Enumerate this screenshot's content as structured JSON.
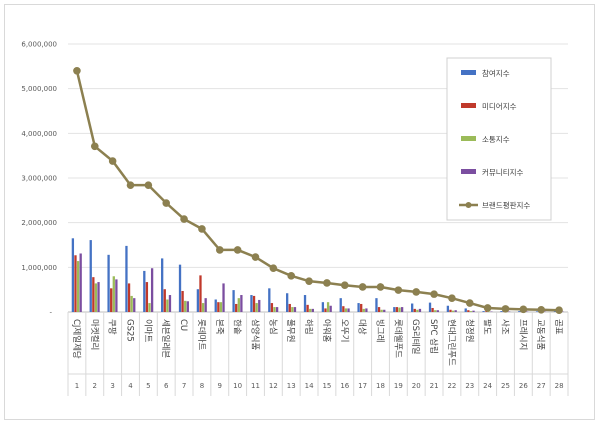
{
  "chart_data": {
    "type": "bar+line",
    "categories": [
      "CJ제일제당",
      "마켓컬리",
      "쿠팡",
      "GS25",
      "이마트",
      "세븐일레븐",
      "CU",
      "롯데마트",
      "본죽",
      "한솥",
      "삼양식품",
      "농심",
      "풀무원",
      "하림",
      "아워홈",
      "오뚜기",
      "대상",
      "빙그레",
      "롯데웰푸드",
      "GS리테일",
      "SPC 삼립",
      "현대그린푸드",
      "청정원",
      "팔도",
      "사조",
      "프레시지",
      "교동식품",
      "곰표"
    ],
    "ranks": [
      "1",
      "2",
      "3",
      "4",
      "5",
      "6",
      "7",
      "8",
      "9",
      "10",
      "11",
      "12",
      "13",
      "14",
      "15",
      "16",
      "17",
      "18",
      "19",
      "20",
      "21",
      "22",
      "23",
      "24",
      "25",
      "26",
      "27",
      "28"
    ],
    "ylim": [
      0,
      6000000
    ],
    "yticks": [
      "-",
      "1,000,000",
      "2,000,000",
      "3,000,000",
      "4,000,000",
      "5,000,000",
      "6,000,000"
    ],
    "grid": true,
    "legend_position": "right",
    "series": [
      {
        "name": "참여지수",
        "type": "bar",
        "color": "#4472c4",
        "values": [
          1650000,
          1610000,
          1280000,
          1480000,
          920000,
          1200000,
          1060000,
          510000,
          280000,
          490000,
          380000,
          530000,
          420000,
          380000,
          220000,
          310000,
          200000,
          310000,
          110000,
          190000,
          210000,
          140000,
          80000,
          20000,
          20000,
          20000,
          15000,
          15000
        ]
      },
      {
        "name": "미디어지수",
        "type": "bar",
        "color": "#c0392b",
        "values": [
          1270000,
          780000,
          530000,
          640000,
          670000,
          510000,
          470000,
          820000,
          220000,
          180000,
          360000,
          200000,
          180000,
          160000,
          80000,
          130000,
          180000,
          110000,
          110000,
          70000,
          90000,
          50000,
          40000,
          15000,
          15000,
          15000,
          10000,
          10000
        ]
      },
      {
        "name": "소통지수",
        "type": "bar",
        "color": "#9bbb59",
        "values": [
          1140000,
          640000,
          800000,
          360000,
          200000,
          280000,
          250000,
          200000,
          220000,
          310000,
          200000,
          110000,
          110000,
          70000,
          220000,
          80000,
          70000,
          50000,
          100000,
          50000,
          40000,
          30000,
          20000,
          10000,
          10000,
          10000,
          8000,
          8000
        ]
      },
      {
        "name": "커뮤니티지수",
        "type": "bar",
        "color": "#7b4ea0",
        "values": [
          1310000,
          670000,
          730000,
          310000,
          980000,
          380000,
          240000,
          310000,
          640000,
          380000,
          270000,
          110000,
          110000,
          70000,
          140000,
          80000,
          80000,
          50000,
          110000,
          70000,
          40000,
          40000,
          30000,
          10000,
          10000,
          10000,
          8000,
          8000
        ]
      },
      {
        "name": "브랜드평판지수",
        "type": "line",
        "color": "#8c8050",
        "values": [
          5400000,
          3710000,
          3380000,
          2840000,
          2840000,
          2440000,
          2080000,
          1860000,
          1390000,
          1390000,
          1230000,
          980000,
          810000,
          690000,
          650000,
          600000,
          560000,
          560000,
          490000,
          450000,
          400000,
          310000,
          200000,
          90000,
          70000,
          60000,
          50000,
          40000
        ]
      }
    ]
  }
}
